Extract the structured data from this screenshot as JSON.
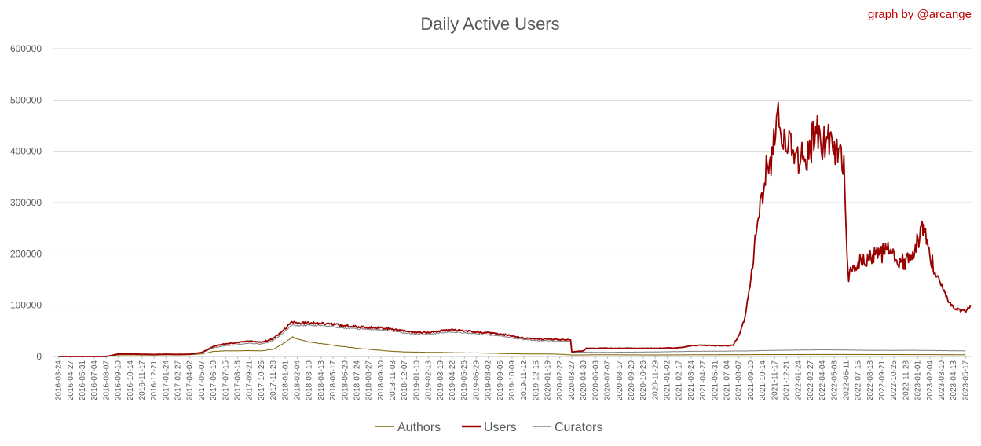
{
  "chart_data": {
    "type": "line",
    "title": "Daily Active Users",
    "credit": "graph by @arcange",
    "ylim": [
      0,
      600000
    ],
    "yticks": [
      "0",
      "100000",
      "200000",
      "300000",
      "400000",
      "500000",
      "600000"
    ],
    "grid": true,
    "legend_position": "bottom",
    "x_ticks": [
      "2016-03-24",
      "2016-04-27",
      "2016-05-31",
      "2016-07-04",
      "2016-08-07",
      "2016-09-10",
      "2016-10-14",
      "2016-11-17",
      "2016-12-21",
      "2017-01-24",
      "2017-02-27",
      "2017-04-02",
      "2017-05-07",
      "2017-06-10",
      "2017-07-15",
      "2017-08-18",
      "2017-09-21",
      "2017-10-25",
      "2017-11-28",
      "2018-01-01",
      "2018-02-04",
      "2018-03-10",
      "2018-04-13",
      "2018-05-17",
      "2018-06-20",
      "2018-07-24",
      "2018-08-27",
      "2018-09-30",
      "2018-11-03",
      "2018-12-07",
      "2019-01-10",
      "2019-02-13",
      "2019-03-19",
      "2019-04-22",
      "2019-05-26",
      "2019-06-29",
      "2019-08-02",
      "2019-09-05",
      "2019-10-09",
      "2019-11-12",
      "2019-12-16",
      "2020-01-19",
      "2020-02-22",
      "2020-03-27",
      "2020-04-30",
      "2020-06-03",
      "2020-07-07",
      "2020-08-17",
      "2020-09-20",
      "2020-10-26",
      "2020-11-29",
      "2021-01-02",
      "2021-02-17",
      "2021-03-24",
      "2021-04-27",
      "2021-05-31",
      "2021-07-04",
      "2021-08-07",
      "2021-09-10",
      "2021-10-14",
      "2021-11-17",
      "2021-12-21",
      "2022-01-24",
      "2022-02-27",
      "2022-04-04",
      "2022-05-08",
      "2022-06-11",
      "2022-07-15",
      "2022-08-18",
      "2022-09-21",
      "2022-10-25",
      "2022-11-28",
      "2023-01-01",
      "2023-02-04",
      "2023-03-10",
      "2023-04-13",
      "2023-05-17"
    ],
    "series": [
      {
        "name": "Authors",
        "color": "#7f6000",
        "points": [
          [
            0,
            0
          ],
          [
            4,
            0
          ],
          [
            5,
            3000
          ],
          [
            6,
            3200
          ],
          [
            7,
            3000
          ],
          [
            8,
            2800
          ],
          [
            9,
            3200
          ],
          [
            10,
            3000
          ],
          [
            11,
            3500
          ],
          [
            12,
            5000
          ],
          [
            13,
            10000
          ],
          [
            14,
            11000
          ],
          [
            15,
            11000
          ],
          [
            16,
            11500
          ],
          [
            17,
            11000
          ],
          [
            18,
            14000
          ],
          [
            19,
            28000
          ],
          [
            19.6,
            38000
          ],
          [
            20,
            34000
          ],
          [
            21,
            28000
          ],
          [
            22,
            25000
          ],
          [
            23,
            22000
          ],
          [
            24,
            19000
          ],
          [
            25,
            16000
          ],
          [
            26,
            14000
          ],
          [
            27,
            12000
          ],
          [
            28,
            10000
          ],
          [
            29,
            9000
          ],
          [
            30,
            8500
          ],
          [
            31,
            8000
          ],
          [
            32,
            8000
          ],
          [
            33,
            7500
          ],
          [
            34,
            7000
          ],
          [
            35,
            7000
          ],
          [
            36,
            6500
          ],
          [
            37,
            6000
          ],
          [
            38,
            5500
          ],
          [
            39,
            5000
          ],
          [
            40,
            5000
          ],
          [
            41,
            4800
          ],
          [
            42,
            4500
          ],
          [
            43,
            3000
          ],
          [
            44,
            3000
          ],
          [
            45,
            3500
          ],
          [
            50,
            3000
          ],
          [
            55,
            3500
          ],
          [
            60,
            3800
          ],
          [
            65,
            4000
          ],
          [
            70,
            3800
          ],
          [
            76,
            3500
          ]
        ]
      },
      {
        "name": "Users",
        "color": "#990000",
        "points": [
          [
            0,
            0
          ],
          [
            4,
            0
          ],
          [
            5,
            5000
          ],
          [
            6,
            5000
          ],
          [
            7,
            4500
          ],
          [
            8,
            4000
          ],
          [
            9,
            4500
          ],
          [
            10,
            4200
          ],
          [
            11,
            4500
          ],
          [
            12,
            8000
          ],
          [
            13,
            20000
          ],
          [
            14,
            25000
          ],
          [
            15,
            27000
          ],
          [
            16,
            30000
          ],
          [
            17,
            28000
          ],
          [
            18,
            35000
          ],
          [
            19,
            55000
          ],
          [
            19.6,
            68000
          ],
          [
            20,
            65000
          ],
          [
            21,
            66000
          ],
          [
            22,
            65000
          ],
          [
            23,
            63000
          ],
          [
            24,
            60000
          ],
          [
            25,
            58000
          ],
          [
            26,
            57000
          ],
          [
            27,
            56000
          ],
          [
            28,
            53000
          ],
          [
            29,
            50000
          ],
          [
            30,
            47000
          ],
          [
            31,
            47000
          ],
          [
            32,
            50000
          ],
          [
            33,
            52000
          ],
          [
            34,
            50000
          ],
          [
            35,
            48000
          ],
          [
            36,
            46000
          ],
          [
            37,
            44000
          ],
          [
            38,
            40000
          ],
          [
            39,
            36000
          ],
          [
            40,
            34000
          ],
          [
            41,
            34000
          ],
          [
            42,
            33000
          ],
          [
            42.9,
            32000
          ],
          [
            43,
            9000
          ],
          [
            44,
            11000
          ],
          [
            44.2,
            16000
          ],
          [
            46,
            16000
          ],
          [
            48,
            16000
          ],
          [
            50,
            16000
          ],
          [
            52,
            17000
          ],
          [
            53,
            21000
          ],
          [
            54,
            22000
          ],
          [
            55,
            21000
          ],
          [
            56,
            21000
          ],
          [
            56.5,
            22000
          ],
          [
            57,
            40000
          ],
          [
            57.5,
            75000
          ],
          [
            58,
            150000
          ],
          [
            58.5,
            260000
          ],
          [
            59,
            300000
          ],
          [
            59.3,
            370000
          ],
          [
            59.7,
            375000
          ],
          [
            60,
            420000
          ],
          [
            60.3,
            470000
          ],
          [
            60.6,
            440000
          ],
          [
            61,
            410000
          ],
          [
            61.5,
            420000
          ],
          [
            62,
            390000
          ],
          [
            62.5,
            380000
          ],
          [
            63,
            410000
          ],
          [
            63.5,
            440000
          ],
          [
            64,
            420000
          ],
          [
            64.5,
            415000
          ],
          [
            65,
            410000
          ],
          [
            65.5,
            395000
          ],
          [
            65.8,
            380000
          ],
          [
            66,
            230000
          ],
          [
            66.2,
            160000
          ],
          [
            66.5,
            175000
          ],
          [
            67,
            180000
          ],
          [
            67.5,
            190000
          ],
          [
            68,
            195000
          ],
          [
            68.5,
            205000
          ],
          [
            69,
            200000
          ],
          [
            69.5,
            215000
          ],
          [
            70,
            190000
          ],
          [
            70.5,
            185000
          ],
          [
            71,
            185000
          ],
          [
            71.5,
            190000
          ],
          [
            72,
            225000
          ],
          [
            72.5,
            250000
          ],
          [
            73,
            200000
          ],
          [
            73.5,
            160000
          ],
          [
            74,
            140000
          ],
          [
            74.5,
            110000
          ],
          [
            75,
            95000
          ],
          [
            75.5,
            90000
          ],
          [
            76,
            88000
          ],
          [
            76.4,
            100000
          ]
        ]
      },
      {
        "name": "Curators",
        "color": "#808080",
        "points": [
          [
            0,
            0
          ],
          [
            4,
            0
          ],
          [
            5,
            4000
          ],
          [
            6,
            4200
          ],
          [
            7,
            4000
          ],
          [
            8,
            3500
          ],
          [
            9,
            4000
          ],
          [
            10,
            3800
          ],
          [
            11,
            4200
          ],
          [
            12,
            7000
          ],
          [
            13,
            17000
          ],
          [
            14,
            21000
          ],
          [
            15,
            23000
          ],
          [
            16,
            26000
          ],
          [
            17,
            24000
          ],
          [
            18,
            31000
          ],
          [
            19,
            50000
          ],
          [
            19.6,
            62000
          ],
          [
            20,
            60000
          ],
          [
            21,
            61000
          ],
          [
            22,
            60000
          ],
          [
            23,
            58000
          ],
          [
            24,
            55000
          ],
          [
            25,
            54000
          ],
          [
            26,
            53000
          ],
          [
            27,
            52000
          ],
          [
            28,
            49000
          ],
          [
            29,
            46000
          ],
          [
            30,
            43000
          ],
          [
            31,
            43000
          ],
          [
            32,
            46000
          ],
          [
            33,
            48000
          ],
          [
            34,
            46000
          ],
          [
            35,
            44000
          ],
          [
            36,
            42000
          ],
          [
            37,
            40000
          ],
          [
            38,
            36000
          ],
          [
            39,
            33000
          ],
          [
            40,
            31000
          ],
          [
            41,
            31000
          ],
          [
            42,
            30000
          ],
          [
            42.9,
            29000
          ],
          [
            43,
            8000
          ],
          [
            44,
            8500
          ],
          [
            45,
            8000
          ],
          [
            48,
            8500
          ],
          [
            50,
            9000
          ],
          [
            52,
            9500
          ],
          [
            53,
            10000
          ],
          [
            56,
            10500
          ],
          [
            58,
            11000
          ],
          [
            60,
            12000
          ],
          [
            62,
            12500
          ],
          [
            64,
            13000
          ],
          [
            66,
            12500
          ],
          [
            68,
            12000
          ],
          [
            70,
            12000
          ],
          [
            72,
            12000
          ],
          [
            74,
            11500
          ],
          [
            76,
            11000
          ]
        ]
      }
    ]
  }
}
